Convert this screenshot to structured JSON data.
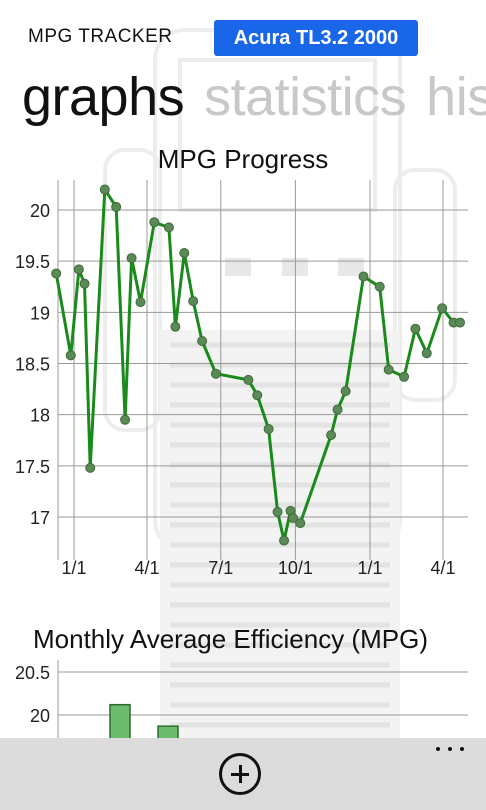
{
  "app": {
    "title": "MPG TRACKER",
    "vehicle": "Acura TL3.2 2000"
  },
  "pivot": {
    "tabs": [
      "graphs",
      "statistics",
      "his"
    ]
  },
  "chart_data": [
    {
      "type": "line",
      "title": "MPG Progress",
      "x_ticks": [
        "1/1",
        "4/1",
        "7/1",
        "10/1",
        "1/1",
        "4/1"
      ],
      "y_ticks": [
        "20",
        "19.5",
        "19",
        "18.5",
        "18",
        "17.5",
        "17"
      ],
      "ylim": [
        16.6,
        20.2
      ],
      "grid": true,
      "colors": {
        "line": "#1a8a1a",
        "marker": "#5a8a55"
      },
      "series": [
        {
          "x": [
            "2000-12-10",
            "2000-12-28",
            "2001-01-07",
            "2001-01-14",
            "2001-01-21",
            "2001-02-08",
            "2001-02-22",
            "2001-03-05",
            "2001-03-13",
            "2001-03-24",
            "2001-04-10",
            "2001-04-28",
            "2001-05-06",
            "2001-05-17",
            "2001-05-28",
            "2001-06-08",
            "2001-06-25",
            "2001-08-04",
            "2001-08-15",
            "2001-08-29",
            "2001-09-09",
            "2001-09-17",
            "2001-09-25",
            "2001-09-28",
            "2001-10-07",
            "2001-11-14",
            "2001-11-22",
            "2001-12-02",
            "2001-12-24",
            "2002-01-13",
            "2002-01-24",
            "2002-02-12",
            "2002-02-26",
            "2002-03-12",
            "2002-03-31",
            "2002-04-14",
            "2002-04-22"
          ],
          "values": [
            19.38,
            18.58,
            19.42,
            19.28,
            17.48,
            20.2,
            20.03,
            17.95,
            19.53,
            19.1,
            19.88,
            19.83,
            18.86,
            19.58,
            19.11,
            18.72,
            18.4,
            18.34,
            18.19,
            17.86,
            17.05,
            16.77,
            17.06,
            16.99,
            16.94,
            17.8,
            18.05,
            18.23,
            19.35,
            19.25,
            18.44,
            18.37,
            18.84,
            18.6,
            19.04,
            18.9,
            18.9
          ]
        }
      ]
    },
    {
      "type": "bar",
      "title": "Monthly Average Efficiency (MPG)",
      "y_ticks": [
        "20.5",
        "20"
      ],
      "colors": {
        "bar": "#6dbb6d"
      },
      "categories": [
        "",
        "",
        ""
      ],
      "values": [
        20.12,
        19.87,
        0
      ]
    }
  ]
}
